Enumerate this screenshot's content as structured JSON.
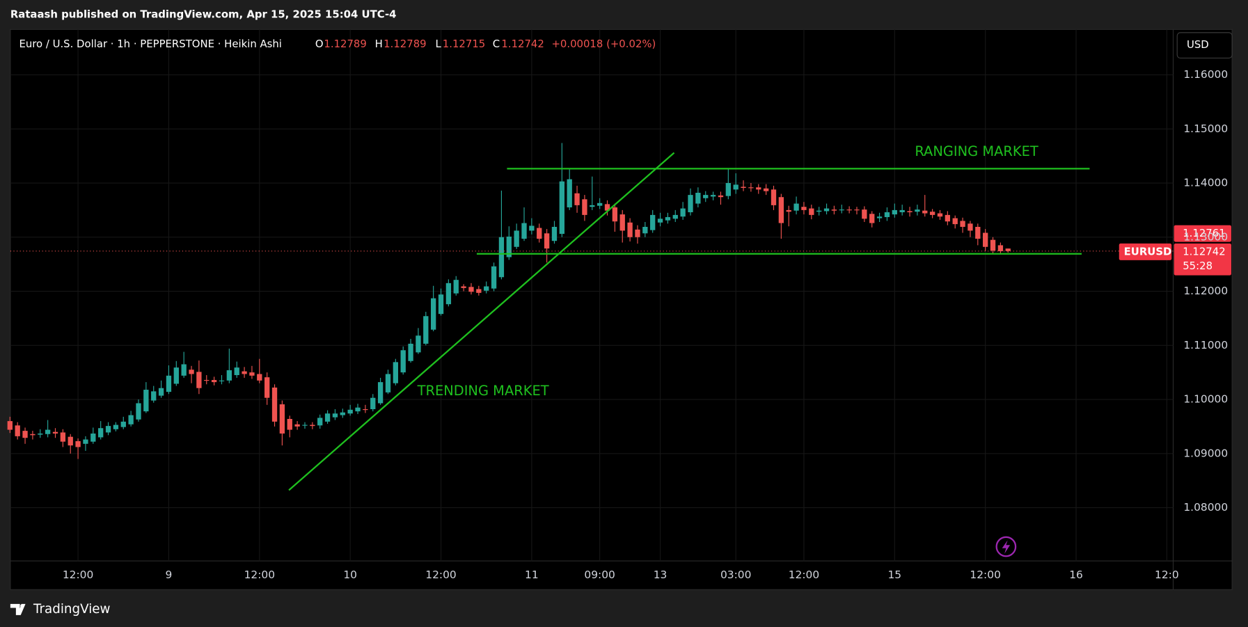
{
  "header": {
    "byline": "Rataash published on TradingView.com, Apr 15, 2025 15:04 UTC-4",
    "footer": "TradingView"
  },
  "chart_data": {
    "type": "candlestick",
    "title": "Euro / U.S. Dollar · 1h · PEPPERSTONE · Heikin Ashi",
    "ohlc_labels": [
      "O",
      "H",
      "L",
      "C"
    ],
    "change": "+0.00018 (+0.02%)",
    "currency": "USD",
    "up_color": "#26a69a",
    "down_color": "#ef5350",
    "grid": true,
    "annotations": [
      "RANGING MARKET",
      "TRENDING MARKET"
    ],
    "price_tags": {
      "symbol": "EURUSD",
      "prev": "1.12761",
      "countdown": "55:28"
    },
    "xlim": [
      3.05,
      156.84
    ],
    "xticks": [
      {
        "value": 12,
        "label": "12:00"
      },
      {
        "value": 24,
        "label": "9"
      },
      {
        "value": 36,
        "label": "12:00"
      },
      {
        "value": 48,
        "label": "10"
      },
      {
        "value": 60,
        "label": "12:00"
      },
      {
        "value": 72,
        "label": "11"
      },
      {
        "value": 81,
        "label": "09:00"
      },
      {
        "value": 89,
        "label": "13"
      },
      {
        "value": 99,
        "label": "03:00"
      },
      {
        "value": 108,
        "label": "12:00"
      },
      {
        "value": 120,
        "label": "15"
      },
      {
        "value": 132,
        "label": "12:00"
      },
      {
        "value": 144,
        "label": "16"
      },
      {
        "value": 156,
        "label": "12:0"
      }
    ],
    "ylim": [
      1.07015,
      1.16824
    ],
    "yticks": [
      {
        "value": 1.16,
        "label": "1.16000"
      },
      {
        "value": 1.15,
        "label": "1.15000"
      },
      {
        "value": 1.14,
        "label": "1.14000"
      },
      {
        "value": 1.13,
        "label": "1.13000"
      },
      {
        "value": 1.12,
        "label": "1.12000"
      },
      {
        "value": 1.11,
        "label": "1.11000"
      },
      {
        "value": 1.1,
        "label": "1.10000"
      },
      {
        "value": 1.09,
        "label": "1.09000"
      },
      {
        "value": 1.08,
        "label": "1.08000"
      }
    ],
    "x": [
      3,
      4,
      5,
      6,
      7,
      8,
      9,
      10,
      11,
      12,
      13,
      14,
      15,
      16,
      17,
      18,
      19,
      20,
      21,
      22,
      23,
      24,
      25,
      26,
      27,
      28,
      29,
      30,
      31,
      32,
      33,
      34,
      35,
      36,
      37,
      38,
      39,
      40,
      41,
      42,
      43,
      44,
      45,
      46,
      47,
      48,
      49,
      50,
      51,
      52,
      53,
      54,
      55,
      56,
      57,
      58,
      59,
      60,
      61,
      62,
      63,
      64,
      65,
      66,
      67,
      68,
      69,
      70,
      71,
      72,
      73,
      74,
      75,
      76,
      77,
      78,
      79,
      80,
      81,
      82,
      83,
      84,
      85,
      86,
      87,
      88,
      89,
      90,
      91,
      92,
      93,
      94,
      95,
      96,
      97,
      98,
      99,
      100,
      101,
      102,
      103,
      104,
      105,
      106,
      107,
      108,
      109,
      110,
      111,
      112,
      113,
      114,
      115,
      116,
      117,
      118,
      119,
      120,
      121,
      122,
      123,
      124,
      125,
      126,
      127,
      128,
      129,
      130,
      131,
      132,
      133,
      134,
      135
    ],
    "open": [
      1.096,
      1.0952,
      1.0942,
      1.0936,
      1.0935,
      1.0936,
      1.094,
      1.0939,
      1.0931,
      1.0923,
      1.0918,
      1.0922,
      1.093,
      1.0939,
      1.0945,
      1.0949,
      1.0954,
      1.0963,
      1.0978,
      1.0998,
      1.1007,
      1.1014,
      1.1029,
      1.1044,
      1.1055,
      1.1051,
      1.1036,
      1.1036,
      1.1034,
      1.1035,
      1.1045,
      1.1052,
      1.105,
      1.1047,
      1.1041,
      1.1022,
      1.0991,
      1.0964,
      1.0954,
      1.0952,
      1.0953,
      1.0952,
      1.0959,
      1.0967,
      1.0971,
      1.0974,
      1.0978,
      1.0982,
      1.0982,
      1.0993,
      1.1013,
      1.103,
      1.105,
      1.1071,
      1.1087,
      1.1103,
      1.1129,
      1.1158,
      1.1176,
      1.1196,
      1.1209,
      1.1208,
      1.1204,
      1.1201,
      1.1205,
      1.1226,
      1.1263,
      1.1282,
      1.1297,
      1.1312,
      1.1317,
      1.1307,
      1.1293,
      1.1306,
      1.1355,
      1.1381,
      1.137,
      1.1356,
      1.1358,
      1.1361,
      1.1355,
      1.1342,
      1.1327,
      1.1314,
      1.1307,
      1.1313,
      1.1327,
      1.1331,
      1.1334,
      1.1338,
      1.1346,
      1.1362,
      1.1372,
      1.1375,
      1.1377,
      1.1376,
      1.1388,
      1.1393,
      1.1392,
      1.1392,
      1.139,
      1.1388,
      1.1374,
      1.135,
      1.1349,
      1.1356,
      1.1353,
      1.1347,
      1.1348,
      1.1351,
      1.135,
      1.1351,
      1.1351,
      1.1351,
      1.1343,
      1.1335,
      1.1337,
      1.1342,
      1.1346,
      1.1348,
      1.1347,
      1.1349,
      1.1347,
      1.1344,
      1.1341,
      1.1335,
      1.133,
      1.1325,
      1.1319,
      1.1308,
      1.1295,
      1.1285,
      1.12789
    ],
    "high": [
      1.0968,
      1.0958,
      1.0948,
      1.0942,
      1.0945,
      1.0962,
      1.0947,
      1.0945,
      1.0936,
      1.0928,
      1.0932,
      1.0948,
      1.096,
      1.0958,
      1.0958,
      1.0968,
      1.0979,
      1.1,
      1.1032,
      1.1025,
      1.1035,
      1.1063,
      1.1071,
      1.1088,
      1.1062,
      1.1072,
      1.1045,
      1.1042,
      1.1045,
      1.1094,
      1.107,
      1.106,
      1.1062,
      1.1075,
      1.105,
      1.1028,
      1.0998,
      1.097,
      1.096,
      1.0958,
      1.0958,
      1.0972,
      1.098,
      1.0982,
      1.0983,
      1.099,
      1.0992,
      1.099,
      1.101,
      1.104,
      1.1055,
      1.1075,
      1.1098,
      1.1112,
      1.1132,
      1.1162,
      1.121,
      1.1205,
      1.1222,
      1.1228,
      1.1213,
      1.1215,
      1.121,
      1.1218,
      1.1253,
      1.1386,
      1.132,
      1.1325,
      1.1355,
      1.1335,
      1.1325,
      1.1315,
      1.133,
      1.1474,
      1.1425,
      1.1395,
      1.1378,
      1.1412,
      1.1372,
      1.1368,
      1.1362,
      1.135,
      1.1335,
      1.1322,
      1.1328,
      1.135,
      1.1345,
      1.1345,
      1.135,
      1.1365,
      1.139,
      1.1392,
      1.1385,
      1.1384,
      1.1384,
      1.1426,
      1.1418,
      1.1405,
      1.14,
      1.1398,
      1.1398,
      1.1395,
      1.138,
      1.1358,
      1.1375,
      1.1365,
      1.136,
      1.1356,
      1.1362,
      1.1358,
      1.136,
      1.1357,
      1.1356,
      1.1357,
      1.1348,
      1.1345,
      1.1355,
      1.1362,
      1.136,
      1.1356,
      1.136,
      1.1378,
      1.1352,
      1.135,
      1.1348,
      1.134,
      1.1336,
      1.133,
      1.1325,
      1.1315,
      1.13,
      1.129,
      1.12789
    ],
    "low": [
      1.0938,
      1.0926,
      1.0918,
      1.0926,
      1.0929,
      1.093,
      1.0929,
      1.0912,
      1.09,
      1.089,
      1.0905,
      1.0918,
      1.0926,
      1.0934,
      1.0941,
      1.0945,
      1.095,
      1.0959,
      1.0975,
      1.0994,
      1.1003,
      1.101,
      1.1025,
      1.104,
      1.103,
      1.101,
      1.1028,
      1.1026,
      1.1028,
      1.103,
      1.104,
      1.104,
      1.1038,
      1.103,
      1.099,
      1.095,
      1.0915,
      1.093,
      1.0944,
      1.0946,
      1.0945,
      1.0946,
      1.0955,
      1.0962,
      1.0966,
      1.097,
      1.0973,
      1.0975,
      1.0978,
      1.099,
      1.101,
      1.1026,
      1.1046,
      1.1068,
      1.1084,
      1.11,
      1.1126,
      1.1155,
      1.1172,
      1.1192,
      1.12,
      1.1194,
      1.1192,
      1.1196,
      1.12,
      1.1222,
      1.1258,
      1.1278,
      1.1293,
      1.1305,
      1.129,
      1.1253,
      1.1288,
      1.13,
      1.135,
      1.1345,
      1.133,
      1.135,
      1.1352,
      1.134,
      1.131,
      1.129,
      1.1292,
      1.1288,
      1.13,
      1.1308,
      1.132,
      1.1325,
      1.1328,
      1.1332,
      1.134,
      1.1355,
      1.1365,
      1.1368,
      1.136,
      1.137,
      1.138,
      1.1385,
      1.1384,
      1.138,
      1.1378,
      1.135,
      1.1297,
      1.132,
      1.1342,
      1.1342,
      1.1333,
      1.134,
      1.1342,
      1.1342,
      1.1344,
      1.1344,
      1.1342,
      1.1328,
      1.1318,
      1.1328,
      1.133,
      1.1336,
      1.134,
      1.1338,
      1.134,
      1.1338,
      1.1335,
      1.1332,
      1.1322,
      1.1316,
      1.1308,
      1.13,
      1.1285,
      1.1274,
      1.127,
      1.127,
      1.12715
    ],
    "close": [
      1.0944,
      1.0932,
      1.0929,
      1.0934,
      1.0937,
      1.0944,
      1.0937,
      1.0922,
      1.0915,
      1.0912,
      1.0926,
      1.0937,
      1.0947,
      1.0951,
      1.0953,
      1.0959,
      1.0971,
      1.0993,
      1.1018,
      1.1015,
      1.1021,
      1.1044,
      1.1059,
      1.1065,
      1.1047,
      1.1021,
      1.1035,
      1.1032,
      1.1035,
      1.1054,
      1.1059,
      1.1047,
      1.1044,
      1.1035,
      1.1003,
      1.0959,
      1.0937,
      1.0944,
      1.095,
      1.0953,
      1.0951,
      1.0966,
      1.0974,
      1.0974,
      1.0976,
      1.0981,
      1.0985,
      1.0981,
      1.1003,
      1.1032,
      1.1047,
      1.1069,
      1.1091,
      1.1103,
      1.1118,
      1.1154,
      1.1187,
      1.1194,
      1.1215,
      1.1221,
      1.1206,
      1.1199,
      1.1197,
      1.1209,
      1.1246,
      1.13,
      1.1301,
      1.1312,
      1.1326,
      1.1321,
      1.1297,
      1.1279,
      1.1319,
      1.1403,
      1.1407,
      1.1359,
      1.1341,
      1.1359,
      1.1363,
      1.1349,
      1.1329,
      1.1312,
      1.13,
      1.13,
      1.1319,
      1.1341,
      1.1334,
      1.1337,
      1.1341,
      1.1353,
      1.1378,
      1.1382,
      1.1378,
      1.1378,
      1.1374,
      1.14,
      1.1397,
      1.1391,
      1.1391,
      1.1388,
      1.1385,
      1.1359,
      1.1326,
      1.1347,
      1.1362,
      1.135,
      1.1341,
      1.1349,
      1.1353,
      1.1349,
      1.1351,
      1.135,
      1.135,
      1.1334,
      1.1326,
      1.1338,
      1.1346,
      1.135,
      1.135,
      1.1346,
      1.1351,
      1.1344,
      1.1341,
      1.1338,
      1.1329,
      1.1324,
      1.1319,
      1.1312,
      1.1297,
      1.1282,
      1.1275,
      1.1274,
      1.12742
    ]
  }
}
